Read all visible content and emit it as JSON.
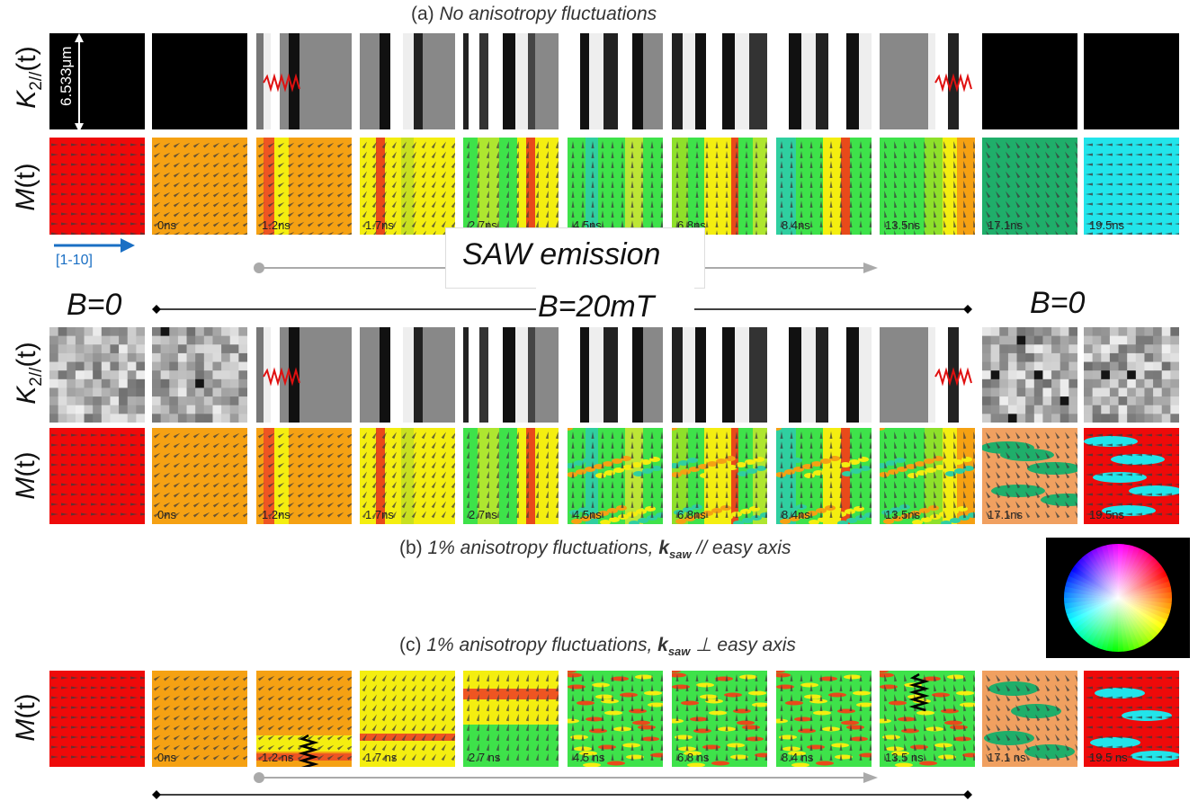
{
  "captions": {
    "a_prefix": "(a) ",
    "a_text": "No anisotropy fluctuations",
    "b_prefix": "(b) ",
    "b_text": "1% anisotropy fluctuations, ",
    "b_k": "k",
    "b_sub": "saw",
    "b_suffix": " // easy axis",
    "c_prefix": "(c) ",
    "c_text": "1% anisotropy fluctuations, ",
    "c_k": "k",
    "c_sub": "saw",
    "c_suffix": " ⊥ easy axis"
  },
  "row_labels": {
    "k_main": "K",
    "k_sub": "2//",
    "k_tail": "(t)",
    "m": "M",
    "m_tail": "(t)"
  },
  "scale_bar": "6.533μm",
  "direction_label": "[1-10]",
  "saw_emission": "SAW emission",
  "field_left": "B=0",
  "field_mid": "B=20mT",
  "field_right": "B=0",
  "times_a": [
    "",
    "0ns",
    "1.2ns",
    "1.7ns",
    "2.7ns",
    "4.5ns",
    "6.8ns",
    "8.4ns",
    "13.5ns",
    "17.1ns",
    "19.5ns"
  ],
  "times_b": [
    "",
    "0ns",
    "1.2ns",
    "1.7ns",
    "2.7ns",
    "4.5ns",
    "6.8ns",
    "8.4ns",
    "13.5ns",
    "17.1ns",
    "19.5ns"
  ],
  "times_c": [
    "",
    "0ns",
    "1.2 ns",
    "1.7 ns",
    "2.7 ns",
    "4.5 ns",
    "6.8 ns",
    "8.4 ns",
    "13.5 ns",
    "17.1 ns",
    "19.5 ns"
  ],
  "colors": {
    "red": "#ee0a0a",
    "orange": "#f5a113",
    "yellow": "#f4ee10",
    "green": "#3ee24a",
    "teal": "#1fae6a",
    "cyan": "#22e4ea",
    "salmon": "#f0a060",
    "arrow_blue": "#1a6fc4",
    "gray_arrow": "#aaaaaa"
  }
}
